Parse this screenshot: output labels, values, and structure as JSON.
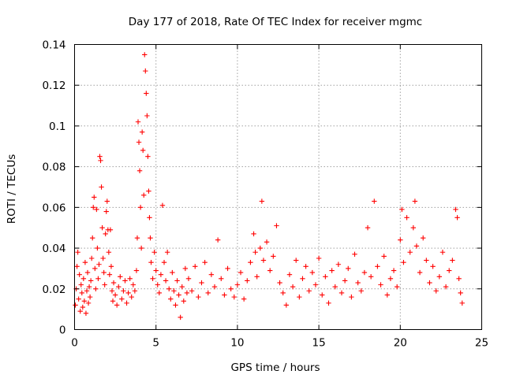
{
  "chart_data": {
    "type": "scatter",
    "title": "Day 177 of 2018, Rate Of TEC Index for receiver mgmc",
    "xlabel": "GPS time / hours",
    "ylabel": "ROTI / TECUs",
    "xlim": [
      0,
      25
    ],
    "ylim": [
      0,
      0.14
    ],
    "xticks": [
      0,
      5,
      10,
      15,
      20,
      25
    ],
    "xtick_labels": [
      "0",
      "5",
      "10",
      "15",
      "20",
      "25"
    ],
    "yticks": [
      0,
      0.02,
      0.04,
      0.06,
      0.08,
      0.1,
      0.12,
      0.14
    ],
    "ytick_labels": [
      "0",
      "0.02",
      "0.04",
      "0.06",
      "0.08",
      "0.1",
      "0.12",
      "0.14"
    ],
    "grid": true,
    "marker": "+",
    "series": [
      {
        "name": "ROTI",
        "color": "#ff0000",
        "points": [
          [
            0.05,
            0.012
          ],
          [
            0.1,
            0.02
          ],
          [
            0.15,
            0.031
          ],
          [
            0.2,
            0.038
          ],
          [
            0.25,
            0.015
          ],
          [
            0.3,
            0.027
          ],
          [
            0.35,
            0.009
          ],
          [
            0.4,
            0.022
          ],
          [
            0.45,
            0.018
          ],
          [
            0.5,
            0.011
          ],
          [
            0.55,
            0.025
          ],
          [
            0.6,
            0.014
          ],
          [
            0.65,
            0.033
          ],
          [
            0.7,
            0.008
          ],
          [
            0.75,
            0.019
          ],
          [
            0.8,
            0.028
          ],
          [
            0.85,
            0.013
          ],
          [
            0.9,
            0.021
          ],
          [
            0.95,
            0.016
          ],
          [
            1.0,
            0.024
          ],
          [
            1.05,
            0.035
          ],
          [
            1.1,
            0.045
          ],
          [
            1.15,
            0.06
          ],
          [
            1.2,
            0.065
          ],
          [
            1.25,
            0.03
          ],
          [
            1.3,
            0.02
          ],
          [
            1.35,
            0.059
          ],
          [
            1.4,
            0.04
          ],
          [
            1.45,
            0.025
          ],
          [
            1.5,
            0.032
          ],
          [
            1.55,
            0.085
          ],
          [
            1.6,
            0.083
          ],
          [
            1.65,
            0.07
          ],
          [
            1.7,
            0.05
          ],
          [
            1.75,
            0.035
          ],
          [
            1.8,
            0.028
          ],
          [
            1.85,
            0.022
          ],
          [
            1.9,
            0.047
          ],
          [
            1.95,
            0.058
          ],
          [
            2.0,
            0.063
          ],
          [
            2.05,
            0.049
          ],
          [
            2.1,
            0.038
          ],
          [
            2.15,
            0.027
          ],
          [
            2.2,
            0.049
          ],
          [
            2.25,
            0.031
          ],
          [
            2.3,
            0.019
          ],
          [
            2.35,
            0.014
          ],
          [
            2.4,
            0.023
          ],
          [
            2.5,
            0.017
          ],
          [
            2.6,
            0.012
          ],
          [
            2.7,
            0.021
          ],
          [
            2.8,
            0.026
          ],
          [
            2.9,
            0.015
          ],
          [
            3.0,
            0.019
          ],
          [
            3.1,
            0.024
          ],
          [
            3.2,
            0.013
          ],
          [
            3.3,
            0.018
          ],
          [
            3.4,
            0.025
          ],
          [
            3.5,
            0.016
          ],
          [
            3.6,
            0.022
          ],
          [
            3.7,
            0.019
          ],
          [
            3.8,
            0.029
          ],
          [
            3.85,
            0.045
          ],
          [
            3.9,
            0.102
          ],
          [
            3.95,
            0.092
          ],
          [
            4.0,
            0.078
          ],
          [
            4.05,
            0.06
          ],
          [
            4.1,
            0.04
          ],
          [
            4.15,
            0.097
          ],
          [
            4.2,
            0.088
          ],
          [
            4.25,
            0.066
          ],
          [
            4.3,
            0.135
          ],
          [
            4.35,
            0.127
          ],
          [
            4.4,
            0.116
          ],
          [
            4.45,
            0.105
          ],
          [
            4.5,
            0.085
          ],
          [
            4.55,
            0.068
          ],
          [
            4.6,
            0.055
          ],
          [
            4.65,
            0.045
          ],
          [
            4.7,
            0.033
          ],
          [
            4.8,
            0.025
          ],
          [
            4.9,
            0.038
          ],
          [
            5.0,
            0.029
          ],
          [
            5.1,
            0.022
          ],
          [
            5.2,
            0.018
          ],
          [
            5.3,
            0.027
          ],
          [
            5.4,
            0.061
          ],
          [
            5.5,
            0.033
          ],
          [
            5.6,
            0.024
          ],
          [
            5.7,
            0.038
          ],
          [
            5.8,
            0.02
          ],
          [
            5.9,
            0.015
          ],
          [
            6.0,
            0.028
          ],
          [
            6.1,
            0.019
          ],
          [
            6.2,
            0.012
          ],
          [
            6.3,
            0.024
          ],
          [
            6.4,
            0.017
          ],
          [
            6.5,
            0.006
          ],
          [
            6.6,
            0.021
          ],
          [
            6.7,
            0.014
          ],
          [
            6.8,
            0.03
          ],
          [
            6.9,
            0.018
          ],
          [
            7.0,
            0.025
          ],
          [
            7.2,
            0.019
          ],
          [
            7.4,
            0.031
          ],
          [
            7.6,
            0.016
          ],
          [
            7.8,
            0.023
          ],
          [
            8.0,
            0.033
          ],
          [
            8.2,
            0.018
          ],
          [
            8.4,
            0.027
          ],
          [
            8.6,
            0.021
          ],
          [
            8.8,
            0.044
          ],
          [
            9.0,
            0.025
          ],
          [
            9.2,
            0.017
          ],
          [
            9.4,
            0.03
          ],
          [
            9.6,
            0.02
          ],
          [
            9.8,
            0.016
          ],
          [
            10.0,
            0.022
          ],
          [
            10.2,
            0.028
          ],
          [
            10.4,
            0.015
          ],
          [
            10.6,
            0.024
          ],
          [
            10.8,
            0.033
          ],
          [
            11.0,
            0.047
          ],
          [
            11.1,
            0.038
          ],
          [
            11.2,
            0.026
          ],
          [
            11.4,
            0.04
          ],
          [
            11.5,
            0.063
          ],
          [
            11.6,
            0.034
          ],
          [
            11.8,
            0.043
          ],
          [
            12.0,
            0.029
          ],
          [
            12.2,
            0.036
          ],
          [
            12.4,
            0.051
          ],
          [
            12.6,
            0.023
          ],
          [
            12.8,
            0.018
          ],
          [
            13.0,
            0.012
          ],
          [
            13.2,
            0.027
          ],
          [
            13.4,
            0.021
          ],
          [
            13.6,
            0.034
          ],
          [
            13.8,
            0.016
          ],
          [
            14.0,
            0.025
          ],
          [
            14.2,
            0.031
          ],
          [
            14.4,
            0.019
          ],
          [
            14.6,
            0.028
          ],
          [
            14.8,
            0.022
          ],
          [
            15.0,
            0.035
          ],
          [
            15.2,
            0.017
          ],
          [
            15.4,
            0.026
          ],
          [
            15.6,
            0.013
          ],
          [
            15.8,
            0.029
          ],
          [
            16.0,
            0.021
          ],
          [
            16.2,
            0.032
          ],
          [
            16.4,
            0.018
          ],
          [
            16.6,
            0.024
          ],
          [
            16.8,
            0.03
          ],
          [
            17.0,
            0.016
          ],
          [
            17.2,
            0.037
          ],
          [
            17.4,
            0.023
          ],
          [
            17.6,
            0.019
          ],
          [
            17.8,
            0.028
          ],
          [
            18.0,
            0.05
          ],
          [
            18.2,
            0.026
          ],
          [
            18.4,
            0.063
          ],
          [
            18.6,
            0.031
          ],
          [
            18.8,
            0.022
          ],
          [
            19.0,
            0.036
          ],
          [
            19.2,
            0.017
          ],
          [
            19.4,
            0.025
          ],
          [
            19.6,
            0.029
          ],
          [
            19.8,
            0.021
          ],
          [
            20.0,
            0.044
          ],
          [
            20.1,
            0.059
          ],
          [
            20.2,
            0.033
          ],
          [
            20.4,
            0.055
          ],
          [
            20.6,
            0.038
          ],
          [
            20.8,
            0.05
          ],
          [
            20.9,
            0.063
          ],
          [
            21.0,
            0.041
          ],
          [
            21.2,
            0.028
          ],
          [
            21.4,
            0.045
          ],
          [
            21.6,
            0.034
          ],
          [
            21.8,
            0.023
          ],
          [
            22.0,
            0.031
          ],
          [
            22.2,
            0.019
          ],
          [
            22.4,
            0.026
          ],
          [
            22.6,
            0.038
          ],
          [
            22.8,
            0.021
          ],
          [
            23.0,
            0.029
          ],
          [
            23.2,
            0.034
          ],
          [
            23.4,
            0.059
          ],
          [
            23.5,
            0.055
          ],
          [
            23.6,
            0.025
          ],
          [
            23.7,
            0.018
          ],
          [
            23.8,
            0.013
          ]
        ]
      }
    ]
  }
}
